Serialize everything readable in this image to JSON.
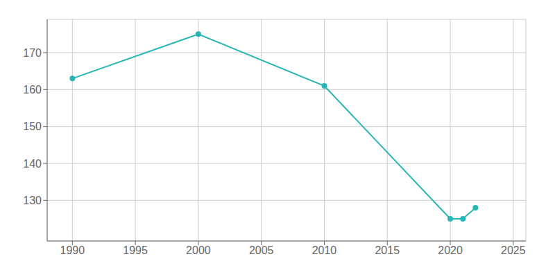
{
  "chart_data": {
    "type": "line",
    "x": [
      1990,
      2000,
      2010,
      2020,
      2021,
      2022
    ],
    "values": [
      163,
      175,
      161,
      125,
      125,
      128
    ],
    "color": "#2ab5b5",
    "xlim": [
      1988,
      2026
    ],
    "ylim": [
      119,
      179
    ],
    "xticks": [
      1990,
      1995,
      2000,
      2005,
      2010,
      2015,
      2020,
      2025
    ],
    "yticks": [
      130,
      140,
      150,
      160,
      170
    ],
    "grid": true,
    "marker": "circle"
  }
}
